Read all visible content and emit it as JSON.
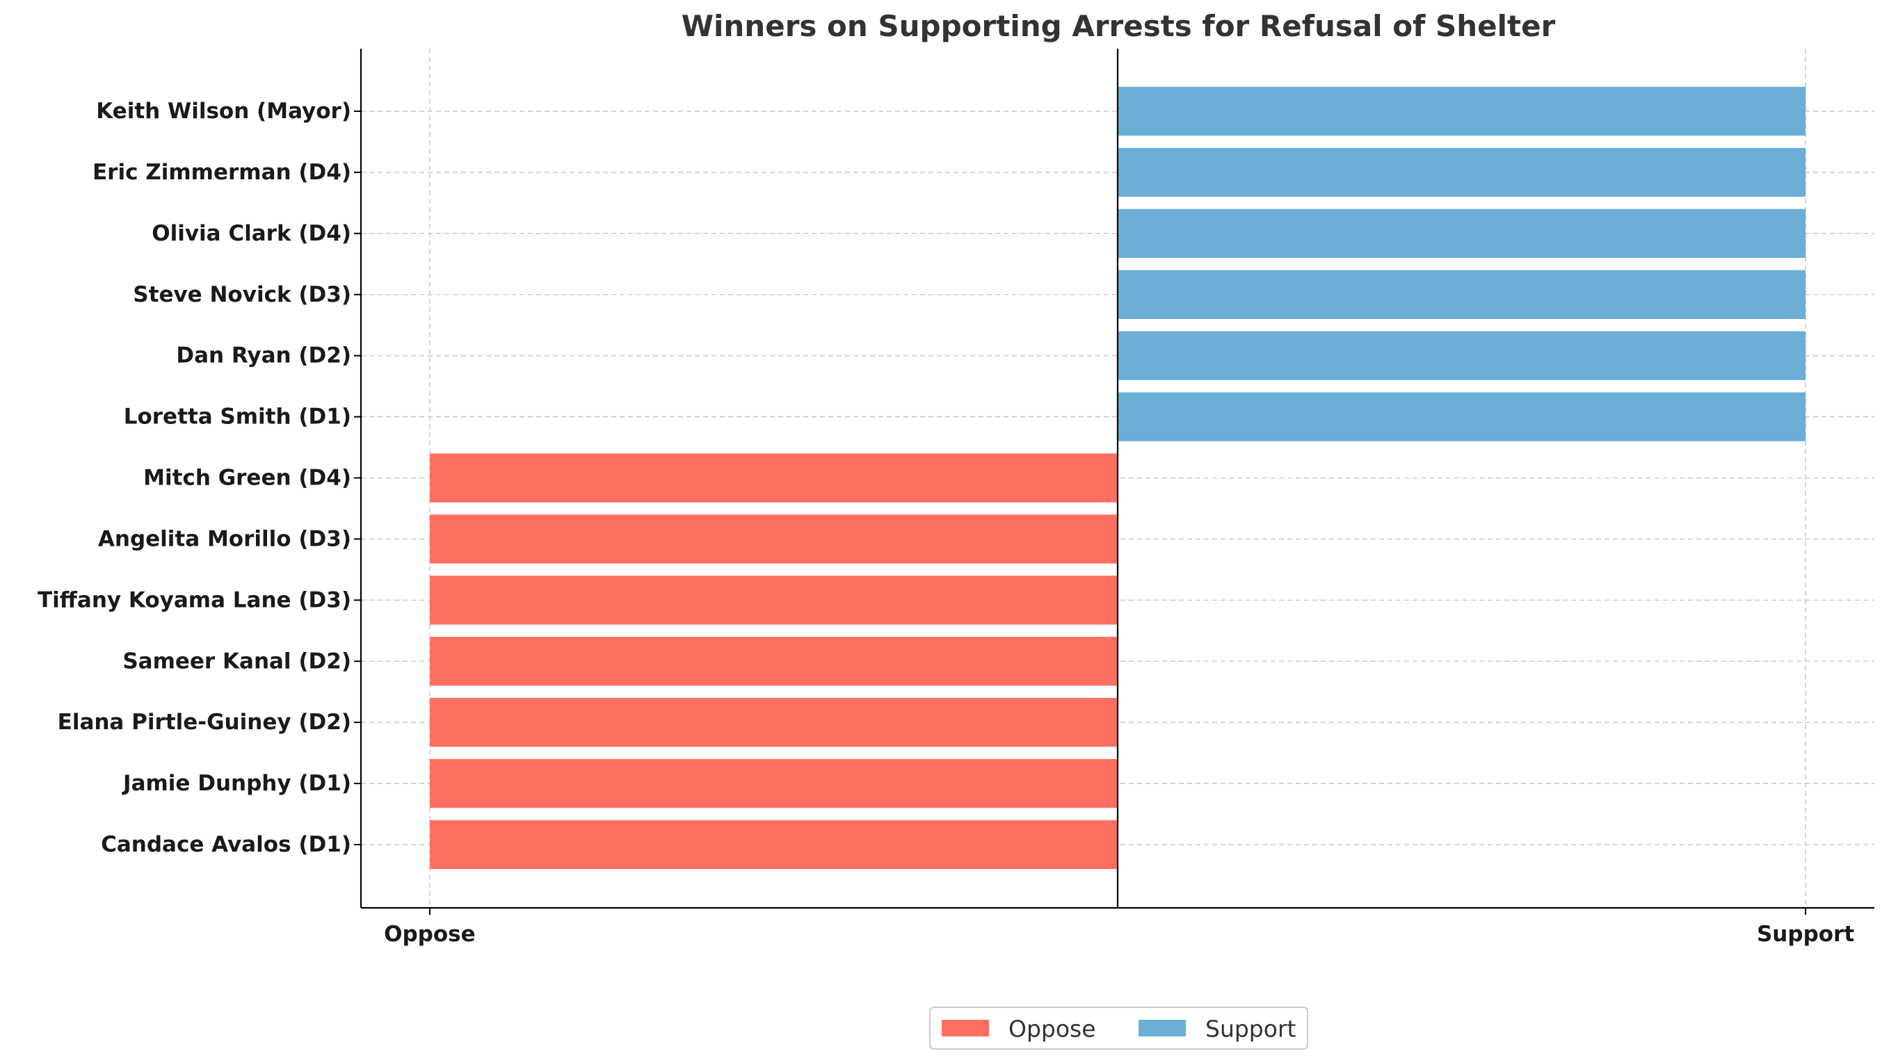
{
  "chart_data": {
    "type": "bar",
    "orientation": "horizontal",
    "title": "Winners on Supporting Arrests for Refusal of Shelter",
    "xlabel": "",
    "ylabel": "",
    "categories": [
      "Candace Avalos (D1)",
      "Jamie Dunphy (D1)",
      "Elana Pirtle-Guiney (D2)",
      "Sameer Kanal (D2)",
      "Tiffany Koyama Lane (D3)",
      "Angelita Morillo (D3)",
      "Mitch Green (D4)",
      "Loretta Smith (D1)",
      "Dan Ryan (D2)",
      "Steve Novick (D3)",
      "Olivia Clark (D4)",
      "Eric Zimmerman (D4)",
      "Keith Wilson (Mayor)"
    ],
    "values": [
      -1,
      -1,
      -1,
      -1,
      -1,
      -1,
      -1,
      1,
      1,
      1,
      1,
      1,
      1
    ],
    "xlim": [
      -1.1,
      1.1
    ],
    "xticks": [
      {
        "value": -1,
        "label": "Oppose"
      },
      {
        "value": 1,
        "label": "Support"
      }
    ],
    "series": [
      {
        "name": "Oppose",
        "color": "#ff6f61"
      },
      {
        "name": "Support",
        "color": "#6baed6"
      }
    ],
    "grid": true,
    "legend_position": "bottom-center"
  }
}
